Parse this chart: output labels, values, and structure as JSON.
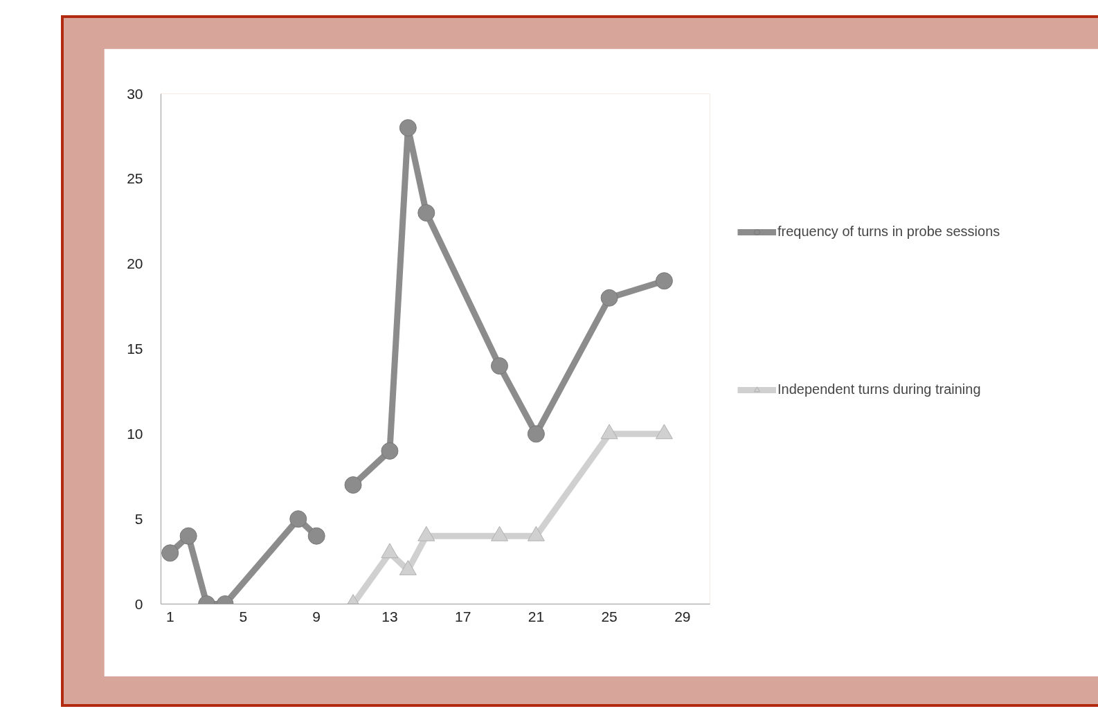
{
  "chart_data": {
    "type": "line",
    "xlim": [
      0.5,
      30.5
    ],
    "xticks": [
      1,
      5,
      9,
      13,
      17,
      21,
      25,
      29
    ],
    "ylim": [
      0,
      30
    ],
    "yticks": [
      0,
      5,
      10,
      15,
      20,
      25,
      30
    ],
    "grid": false,
    "legend": "right",
    "line_style": "solid",
    "series": [
      {
        "name": "frequency of turns in probe sessions",
        "color": "#8c8c8c",
        "marker": "circle",
        "x": [
          1,
          2,
          3,
          4,
          8,
          9,
          10,
          11,
          13,
          14,
          15,
          19,
          21,
          25,
          28
        ],
        "values": [
          3,
          4,
          0,
          0,
          5,
          4,
          null,
          7,
          9,
          28,
          23,
          14,
          10,
          18,
          19
        ]
      },
      {
        "name": "Independent turns during training",
        "color": "#d0d0d0",
        "marker": "triangle",
        "x": [
          11,
          13,
          14,
          15,
          19,
          21,
          25,
          28
        ],
        "values": [
          0,
          3,
          2,
          4,
          4,
          4,
          10,
          10
        ]
      }
    ]
  }
}
